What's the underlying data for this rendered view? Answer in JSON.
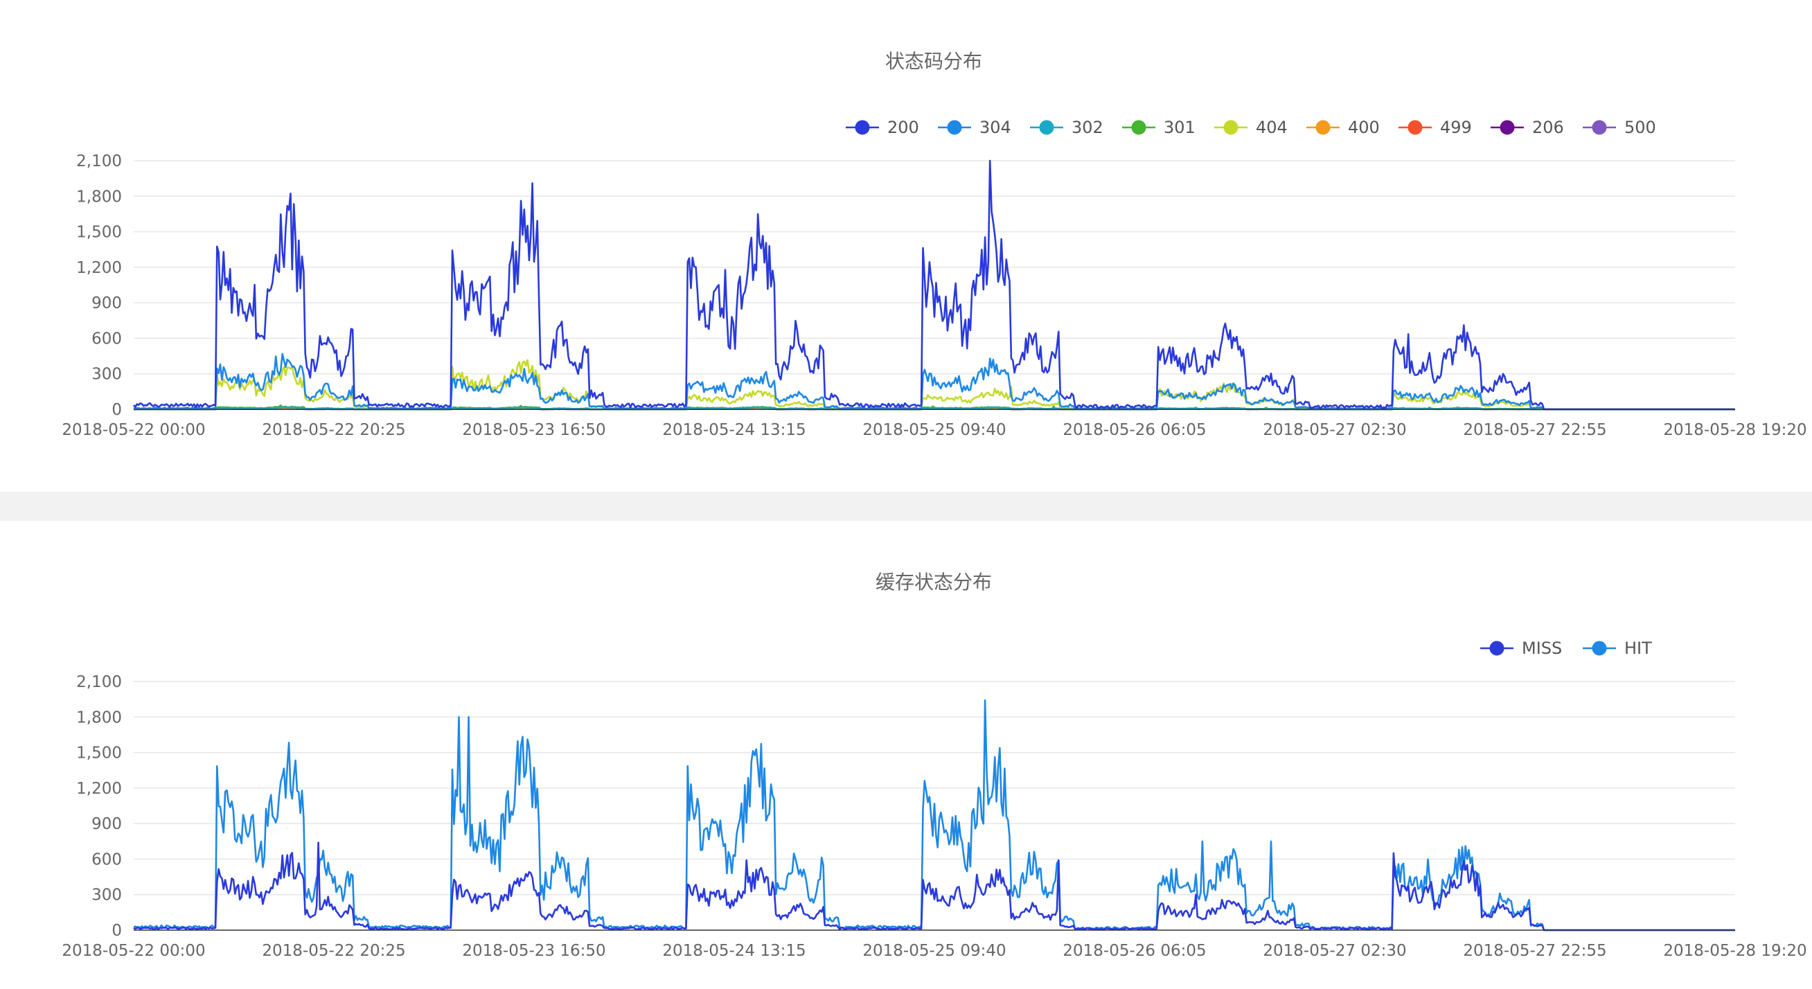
{
  "chart_data": [
    {
      "type": "line",
      "title": "状态码分布",
      "xlabel": "",
      "ylabel": "",
      "ylim": [
        0,
        2100
      ],
      "yticks": [
        0,
        300,
        600,
        900,
        "1,200",
        "1,500",
        "1,800",
        "2,100"
      ],
      "xticks": [
        "2018-05-22 00:00",
        "2018-05-22 20:25",
        "2018-05-23 16:50",
        "2018-05-24 13:15",
        "2018-05-25 09:40",
        "2018-05-26 06:05",
        "2018-05-27 02:30",
        "2018-05-27 22:55",
        "2018-05-28 19:20"
      ],
      "xlim": [
        "2018-05-22 00:00",
        "2018-05-28 19:20"
      ],
      "legend_position": "top-right",
      "grid": true,
      "series": [
        {
          "name": "200",
          "color": "#2a3adb",
          "daily_peaks": [
            1980,
            1910,
            1870,
            1850,
            830,
            770
          ],
          "overnight_baseline": 30
        },
        {
          "name": "304",
          "color": "#1e88e5",
          "daily_peaks": [
            540,
            390,
            370,
            470,
            250,
            220
          ],
          "overnight_baseline": 10
        },
        {
          "name": "302",
          "color": "#1aa9c7",
          "daily_peaks": [
            20,
            20,
            20,
            20,
            10,
            10
          ],
          "overnight_baseline": 0
        },
        {
          "name": "301",
          "color": "#45b52f",
          "daily_peaks": [
            30,
            25,
            25,
            25,
            15,
            15
          ],
          "overnight_baseline": 0
        },
        {
          "name": "404",
          "color": "#c6d92a",
          "daily_peaks": [
            420,
            480,
            180,
            190,
            250,
            180
          ],
          "overnight_baseline": 0
        },
        {
          "name": "400",
          "color": "#f59a1c",
          "daily_peaks": [
            10,
            10,
            10,
            10,
            5,
            5
          ],
          "overnight_baseline": 0
        },
        {
          "name": "499",
          "color": "#f4522d",
          "daily_peaks": [
            15,
            15,
            15,
            15,
            10,
            10
          ],
          "overnight_baseline": 0
        },
        {
          "name": "206",
          "color": "#6b0f8f",
          "daily_peaks": [
            5,
            5,
            5,
            5,
            5,
            5
          ],
          "overnight_baseline": 0
        },
        {
          "name": "500",
          "color": "#7e57c2",
          "daily_peaks": [
            5,
            5,
            5,
            5,
            5,
            5
          ],
          "overnight_baseline": 0
        }
      ],
      "data_end": "2018-05-27 23:40"
    },
    {
      "type": "line",
      "title": "缓存状态分布",
      "xlabel": "",
      "ylabel": "",
      "ylim": [
        0,
        2100
      ],
      "yticks": [
        0,
        300,
        600,
        900,
        "1,200",
        "1,500",
        "1,800",
        "2,100"
      ],
      "xticks": [
        "2018-05-22 00:00",
        "2018-05-22 20:25",
        "2018-05-23 16:50",
        "2018-05-24 13:15",
        "2018-05-25 09:40",
        "2018-05-26 06:05",
        "2018-05-27 02:30",
        "2018-05-27 22:55",
        "2018-05-28 19:20"
      ],
      "xlim": [
        "2018-05-22 00:00",
        "2018-05-28 19:20"
      ],
      "legend_position": "top-right",
      "grid": true,
      "series": [
        {
          "name": "MISS",
          "color": "#2a3adb",
          "daily_peaks": [
            740,
            570,
            590,
            590,
            300,
            650
          ],
          "overnight_baseline": 15
        },
        {
          "name": "HIT",
          "color": "#1e88e5",
          "daily_peaks": [
            1830,
            1800,
            1730,
            1780,
            750,
            800
          ],
          "overnight_baseline": 20
        }
      ],
      "data_end": "2018-05-27 23:40"
    }
  ]
}
